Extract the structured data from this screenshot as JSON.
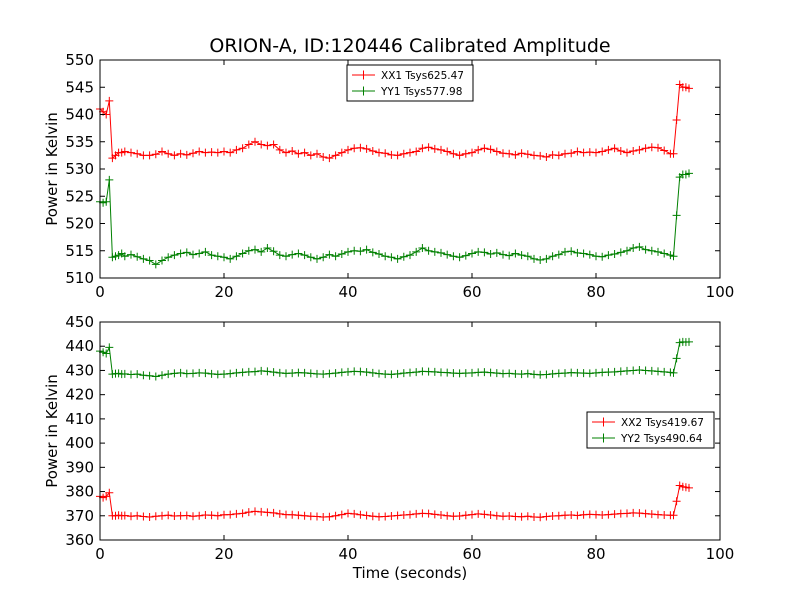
{
  "chart_data": [
    {
      "type": "line",
      "title": "ORION-A, ID:120446 Calibrated Amplitude",
      "xlabel": "",
      "ylabel": "Power in Kelvin",
      "xlim": [
        0,
        100
      ],
      "ylim": [
        510,
        550
      ],
      "xticks": [
        0,
        20,
        40,
        60,
        80,
        100
      ],
      "yticks": [
        510,
        515,
        520,
        525,
        530,
        535,
        540,
        545,
        550
      ],
      "legend_position": "upper center",
      "marker": "+",
      "series": [
        {
          "name": "XX1 Tsys625.47",
          "color": "#ff0000",
          "x": [
            0,
            0.5,
            1,
            1.5,
            2,
            2.5,
            3,
            3.5,
            4,
            5,
            6,
            7,
            8,
            9,
            10,
            11,
            12,
            13,
            14,
            15,
            16,
            17,
            18,
            19,
            20,
            21,
            22,
            23,
            24,
            25,
            26,
            27,
            28,
            29,
            30,
            31,
            32,
            33,
            34,
            35,
            36,
            37,
            38,
            39,
            40,
            41,
            42,
            43,
            44,
            45,
            46,
            47,
            48,
            49,
            50,
            51,
            52,
            53,
            54,
            55,
            56,
            57,
            58,
            59,
            60,
            61,
            62,
            63,
            64,
            65,
            66,
            67,
            68,
            69,
            70,
            71,
            72,
            73,
            74,
            75,
            76,
            77,
            78,
            79,
            80,
            81,
            82,
            83,
            84,
            85,
            86,
            87,
            88,
            89,
            90,
            91,
            92,
            92.5,
            93,
            93.5,
            94,
            94.5,
            95
          ],
          "y": [
            541,
            540.5,
            540,
            542.5,
            532,
            532.5,
            533,
            533,
            533.2,
            533,
            532.8,
            532.5,
            532.5,
            532.7,
            533.2,
            532.8,
            532.5,
            532.8,
            532.6,
            532.9,
            533.2,
            533,
            533.1,
            533,
            533.2,
            533,
            533.5,
            533.8,
            534.5,
            535,
            534.5,
            534.3,
            534.5,
            533.5,
            533,
            533.3,
            532.8,
            533,
            532.5,
            532.8,
            532.2,
            532,
            532.5,
            533,
            533.5,
            533.8,
            533.9,
            533.7,
            533.3,
            533,
            532.9,
            532.6,
            532.5,
            532.8,
            533,
            533.2,
            533.8,
            534,
            533.7,
            533.5,
            533.2,
            532.8,
            532.5,
            532.8,
            533,
            533.5,
            533.8,
            533.6,
            533.2,
            532.9,
            532.8,
            532.6,
            532.9,
            532.7,
            532.5,
            532.4,
            532.2,
            532.6,
            532.5,
            532.8,
            532.9,
            533.2,
            533,
            533.1,
            533,
            533.2,
            533.5,
            533.8,
            533.3,
            533,
            533.3,
            533.5,
            533.8,
            534,
            533.9,
            533.4,
            532.8,
            532.8,
            539,
            545.5,
            545,
            545,
            544.8
          ]
        },
        {
          "name": "YY1 Tsys577.98",
          "color": "#008000",
          "x": [
            0,
            0.5,
            1,
            1.5,
            2,
            2.5,
            3,
            3.5,
            4,
            5,
            6,
            7,
            8,
            9,
            10,
            11,
            12,
            13,
            14,
            15,
            16,
            17,
            18,
            19,
            20,
            21,
            22,
            23,
            24,
            25,
            26,
            27,
            28,
            29,
            30,
            31,
            32,
            33,
            34,
            35,
            36,
            37,
            38,
            39,
            40,
            41,
            42,
            43,
            44,
            45,
            46,
            47,
            48,
            49,
            50,
            51,
            52,
            53,
            54,
            55,
            56,
            57,
            58,
            59,
            60,
            61,
            62,
            63,
            64,
            65,
            66,
            67,
            68,
            69,
            70,
            71,
            72,
            73,
            74,
            75,
            76,
            77,
            78,
            79,
            80,
            81,
            82,
            83,
            84,
            85,
            86,
            87,
            88,
            89,
            90,
            91,
            92,
            92.5,
            93,
            93.5,
            94,
            94.5,
            95
          ],
          "y": [
            524,
            523.8,
            524,
            528,
            513.8,
            514,
            514.2,
            514.5,
            514,
            514.3,
            513.9,
            513.5,
            513.2,
            512.5,
            513.2,
            513.8,
            514.2,
            514.5,
            514.7,
            514.3,
            514.5,
            514.8,
            514.2,
            514,
            513.8,
            513.5,
            514,
            514.5,
            515,
            515.2,
            514.8,
            515.5,
            514.9,
            514.2,
            514,
            514.3,
            514.5,
            514.2,
            513.8,
            513.5,
            513.8,
            514.3,
            514,
            514.4,
            514.8,
            515,
            514.9,
            515.2,
            514.7,
            514.4,
            514,
            513.8,
            513.5,
            513.9,
            514.2,
            514.8,
            515.5,
            515,
            514.8,
            514.6,
            514.3,
            514,
            513.8,
            514.1,
            514.5,
            514.8,
            514.7,
            514.4,
            514.6,
            514.3,
            514.1,
            514.5,
            514.2,
            514,
            513.5,
            513.3,
            513.5,
            514,
            514.3,
            514.8,
            514.9,
            514.6,
            514.5,
            514.3,
            514,
            513.9,
            514.2,
            514.4,
            514.7,
            515,
            515.5,
            515.7,
            515.2,
            515,
            514.8,
            514.5,
            514.2,
            514,
            521.5,
            528.5,
            529,
            529,
            529.2
          ]
        }
      ]
    },
    {
      "type": "line",
      "title": "",
      "xlabel": "Time (seconds)",
      "ylabel": "Power in Kelvin",
      "xlim": [
        0,
        100
      ],
      "ylim": [
        360,
        450
      ],
      "xticks": [
        0,
        20,
        40,
        60,
        80,
        100
      ],
      "yticks": [
        360,
        370,
        380,
        390,
        400,
        410,
        420,
        430,
        440,
        450
      ],
      "legend_position": "center right",
      "marker": "+",
      "series": [
        {
          "name": "XX2 Tsys419.67",
          "color": "#ff0000",
          "x": [
            0,
            0.5,
            1,
            1.5,
            2,
            2.5,
            3,
            3.5,
            4,
            5,
            6,
            7,
            8,
            9,
            10,
            11,
            12,
            13,
            14,
            15,
            16,
            17,
            18,
            19,
            20,
            21,
            22,
            23,
            24,
            25,
            26,
            27,
            28,
            29,
            30,
            31,
            32,
            33,
            34,
            35,
            36,
            37,
            38,
            39,
            40,
            41,
            42,
            43,
            44,
            45,
            46,
            47,
            48,
            49,
            50,
            51,
            52,
            53,
            54,
            55,
            56,
            57,
            58,
            59,
            60,
            61,
            62,
            63,
            64,
            65,
            66,
            67,
            68,
            69,
            70,
            71,
            72,
            73,
            74,
            75,
            76,
            77,
            78,
            79,
            80,
            81,
            82,
            83,
            84,
            85,
            86,
            87,
            88,
            89,
            90,
            91,
            92,
            92.5,
            93,
            93.5,
            94,
            94.5,
            95
          ],
          "y": [
            378,
            377.5,
            378,
            379.5,
            370,
            370,
            370.2,
            370,
            370.1,
            369.8,
            370,
            369.7,
            369.5,
            369.8,
            370,
            370.2,
            369.9,
            370,
            370.1,
            369.8,
            370,
            370.3,
            370.2,
            370,
            370.4,
            370.5,
            370.8,
            371,
            371.5,
            371.8,
            371.6,
            371.4,
            371.2,
            370.8,
            370.5,
            370.4,
            370.2,
            370,
            369.8,
            369.7,
            369.5,
            369.6,
            370,
            370.5,
            371,
            370.8,
            370.4,
            370.1,
            369.8,
            369.6,
            369.7,
            369.9,
            370.1,
            370.3,
            370.5,
            370.8,
            371,
            370.9,
            370.6,
            370.3,
            370,
            369.8,
            369.9,
            370.2,
            370.5,
            370.8,
            370.6,
            370.3,
            370,
            369.8,
            369.9,
            369.7,
            369.6,
            369.8,
            369.5,
            369.4,
            369.7,
            369.9,
            370,
            370.2,
            370.3,
            370.1,
            370.4,
            370.6,
            370.5,
            370.3,
            370.5,
            370.7,
            370.9,
            371,
            371.2,
            371.1,
            370.9,
            370.7,
            370.5,
            370.3,
            370.2,
            370.2,
            376,
            382.5,
            382,
            381.8,
            381.5
          ]
        },
        {
          "name": "YY2 Tsys490.64",
          "color": "#008000",
          "x": [
            0,
            0.5,
            1,
            1.5,
            2,
            2.5,
            3,
            3.5,
            4,
            5,
            6,
            7,
            8,
            9,
            10,
            11,
            12,
            13,
            14,
            15,
            16,
            17,
            18,
            19,
            20,
            21,
            22,
            23,
            24,
            25,
            26,
            27,
            28,
            29,
            30,
            31,
            32,
            33,
            34,
            35,
            36,
            37,
            38,
            39,
            40,
            41,
            42,
            43,
            44,
            45,
            46,
            47,
            48,
            49,
            50,
            51,
            52,
            53,
            54,
            55,
            56,
            57,
            58,
            59,
            60,
            61,
            62,
            63,
            64,
            65,
            66,
            67,
            68,
            69,
            70,
            71,
            72,
            73,
            74,
            75,
            76,
            77,
            78,
            79,
            80,
            81,
            82,
            83,
            84,
            85,
            86,
            87,
            88,
            89,
            90,
            91,
            92,
            92.5,
            93,
            93.5,
            94,
            94.5,
            95
          ],
          "y": [
            438,
            437.5,
            437,
            439.5,
            428.5,
            428.7,
            428.8,
            428.5,
            428.6,
            428.3,
            428.5,
            428,
            427.8,
            427.5,
            428,
            428.5,
            428.8,
            429,
            428.7,
            428.8,
            429,
            428.9,
            428.6,
            428.4,
            428.5,
            428.7,
            429,
            429.2,
            429.4,
            429.5,
            429.8,
            429.6,
            429.3,
            429,
            428.8,
            428.9,
            429.1,
            429,
            428.8,
            428.6,
            428.5,
            428.7,
            428.9,
            429.2,
            429.4,
            429.6,
            429.5,
            429.3,
            429,
            428.7,
            428.5,
            428.4,
            428.6,
            428.9,
            429.1,
            429.3,
            429.6,
            429.5,
            429.4,
            429.2,
            429.1,
            428.9,
            428.8,
            428.9,
            429,
            429.2,
            429.3,
            429.1,
            428.9,
            428.7,
            428.8,
            428.6,
            428.5,
            428.7,
            428.4,
            428.2,
            428.3,
            428.6,
            428.8,
            428.9,
            429.1,
            429,
            428.9,
            428.8,
            429,
            429.2,
            429.3,
            429.4,
            429.6,
            429.8,
            430,
            430.2,
            430,
            429.8,
            429.6,
            429.4,
            429.2,
            429,
            435,
            441.5,
            441.8,
            441.7,
            441.8
          ]
        }
      ]
    }
  ]
}
